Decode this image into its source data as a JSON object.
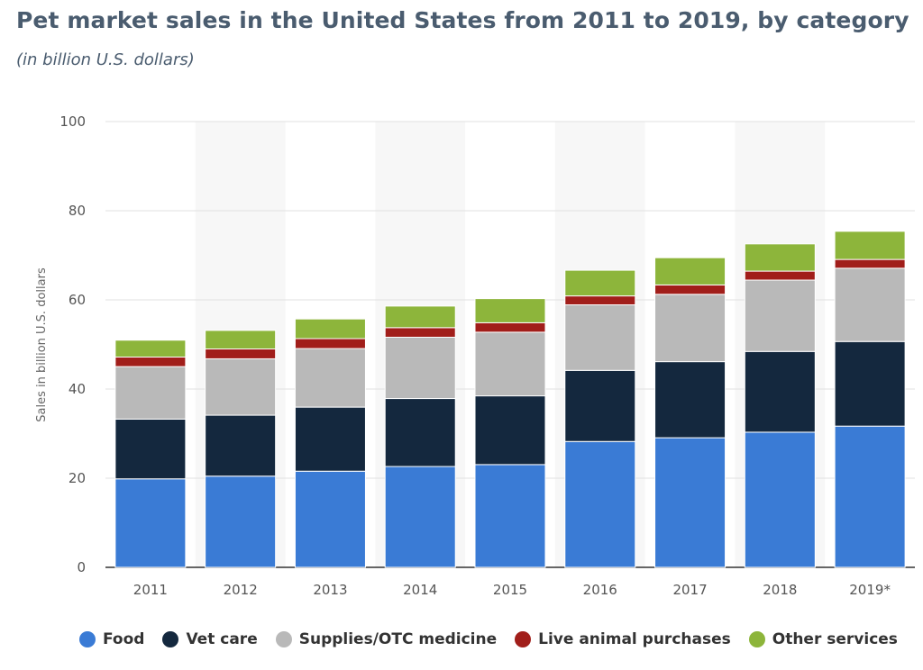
{
  "title": "Pet market sales in the United States from 2011 to 2019, by category",
  "subtitle": "(in billion U.S. dollars)",
  "chart_data": {
    "type": "bar",
    "stacked": true,
    "categories": [
      "2011",
      "2012",
      "2013",
      "2014",
      "2015",
      "2016",
      "2017",
      "2018",
      "2019*"
    ],
    "series": [
      {
        "name": "Food",
        "color": "#3a7bd5",
        "values": [
          19.85,
          20.46,
          21.57,
          22.62,
          23.05,
          28.23,
          29.07,
          30.32,
          31.68
        ]
      },
      {
        "name": "Vet care",
        "color": "#14283e",
        "values": [
          13.41,
          13.67,
          14.37,
          15.25,
          15.42,
          15.95,
          17.07,
          18.11,
          18.98
        ]
      },
      {
        "name": "Supplies/OTC medicine",
        "color": "#b9b9b9",
        "values": [
          11.77,
          12.65,
          13.14,
          13.75,
          14.28,
          14.71,
          15.11,
          16.01,
          16.44
        ]
      },
      {
        "name": "Live animal purchases",
        "color": "#a11e1a",
        "values": [
          2.14,
          2.21,
          2.23,
          2.15,
          2.12,
          2.0,
          2.1,
          2.01,
          1.97
        ]
      },
      {
        "name": "Other services",
        "color": "#8db53b",
        "values": [
          3.79,
          4.16,
          4.41,
          4.84,
          5.41,
          5.76,
          6.11,
          6.11,
          6.31
        ]
      }
    ],
    "xlabel": "",
    "ylabel": "Sales in billion U.S. dollars",
    "ylim": [
      0,
      100
    ],
    "yticks": [
      0,
      20,
      40,
      60,
      80,
      100
    ],
    "grid": true,
    "legend_position": "bottom"
  }
}
